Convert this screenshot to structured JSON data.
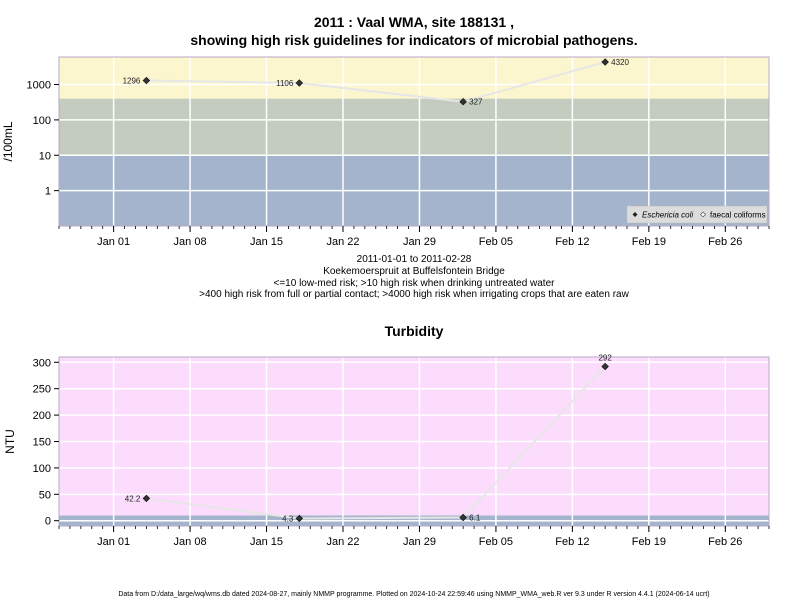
{
  "chart_data": [
    {
      "type": "line",
      "title_line1": "2011 : Vaal WMA, site 188131 ,",
      "title_line2": "showing high risk guidelines for indicators of microbial pathogens.",
      "ylabel": "/100mL",
      "y_scale": "log",
      "ylim": [
        0.1,
        6000
      ],
      "y_ticks": [
        1,
        10,
        100,
        1000
      ],
      "y_tick_labels": [
        "1",
        "10",
        "100",
        "1000"
      ],
      "xlim": [
        "2010-12-27",
        "2011-03-02"
      ],
      "x_tick_labels": [
        "Jan 01",
        "Jan 08",
        "Jan 15",
        "Jan 22",
        "Jan 29",
        "Feb 05",
        "Feb 12",
        "Feb 19",
        "Feb 26"
      ],
      "x_tick_dates": [
        "2011-01-01",
        "2011-01-08",
        "2011-01-15",
        "2011-01-22",
        "2011-01-29",
        "2011-02-05",
        "2011-02-12",
        "2011-02-19",
        "2011-02-26"
      ],
      "grid": true,
      "bands": [
        {
          "from": 0.1,
          "to": 10,
          "color": "#a3b4cc"
        },
        {
          "from": 10,
          "to": 400,
          "color": "#c3ccbe"
        },
        {
          "from": 400,
          "to": 6000,
          "color": "#fcf6ce"
        }
      ],
      "series": [
        {
          "name": "Eschericia coli",
          "x": [
            "2011-01-04",
            "2011-01-18",
            "2011-02-02",
            "2011-02-15"
          ],
          "values": [
            1296,
            1106,
            327,
            4320
          ],
          "labels": [
            "1296",
            "1106",
            "327",
            "4320"
          ],
          "label_side": [
            "left",
            "left",
            "right",
            "right"
          ]
        }
      ],
      "legend": {
        "placement": "bottom-right",
        "entries": [
          "Eschericia coli",
          "faecal coliforms"
        ]
      },
      "caption_lines": [
        "2011-01-01 to 2011-02-28",
        "Koekemoerspruit at Buffelsfontein Bridge",
        "<=10 low-med risk; >10 high risk when drinking untreated water",
        ">400 high risk from full or partial contact; >4000 high risk when irrigating crops that are eaten raw"
      ]
    },
    {
      "type": "line",
      "title": "Turbidity",
      "ylabel": "NTU",
      "ylim": [
        -10,
        310
      ],
      "y_ticks": [
        0,
        50,
        100,
        150,
        200,
        250,
        300
      ],
      "y_tick_labels": [
        "0",
        "50",
        "100",
        "150",
        "200",
        "250",
        "300"
      ],
      "xlim": [
        "2010-12-27",
        "2011-03-02"
      ],
      "x_tick_labels": [
        "Jan 01",
        "Jan 08",
        "Jan 15",
        "Jan 22",
        "Jan 29",
        "Feb 05",
        "Feb 12",
        "Feb 19",
        "Feb 26"
      ],
      "x_tick_dates": [
        "2011-01-01",
        "2011-01-08",
        "2011-01-15",
        "2011-01-22",
        "2011-01-29",
        "2011-02-05",
        "2011-02-12",
        "2011-02-19",
        "2011-02-26"
      ],
      "grid": true,
      "bands": [
        {
          "from": -10,
          "to": 10,
          "color": "#a3b4cc"
        },
        {
          "from": 10,
          "to": 310,
          "color": "#fcdcfc"
        }
      ],
      "series": [
        {
          "name": "",
          "x": [
            "2011-01-04",
            "2011-01-18",
            "2011-02-02",
            "2011-02-15"
          ],
          "values": [
            42.2,
            4.3,
            6.1,
            292
          ],
          "labels": [
            "42.2",
            "4.3",
            "6.1",
            "292"
          ],
          "label_side": [
            "left",
            "left",
            "right",
            "top"
          ]
        }
      ]
    }
  ],
  "footer": "Data from D:/data_large/wq/wms.db dated 2024-08-27, mainly NMMP programme. Plotted on 2024-10-24 22:59:46 using NMMP_WMA_web.R ver 9.3 under R version 4.4.1 (2024-06-14 ucrt)",
  "colors": {
    "line": "#e6e6e6",
    "marker": "#333333",
    "frame": "#b9a9c6",
    "grid": "#ffffff",
    "legend_bg": "#dcdcdc"
  }
}
